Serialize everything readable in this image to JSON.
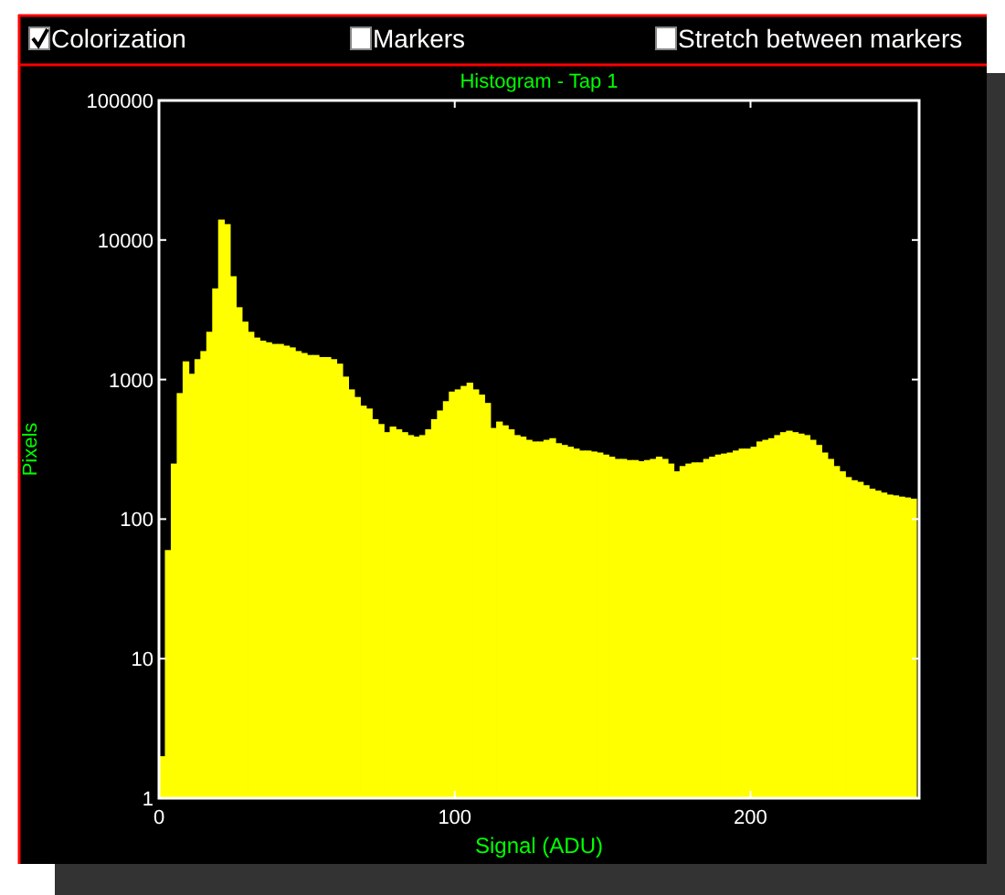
{
  "chart_data": {
    "type": "histogram",
    "title": "Histogram - Tap 1",
    "xlabel": "Signal (ADU)",
    "ylabel": "Pixels",
    "annotations": [
      "Colorization",
      "Markers",
      "Stretch between markers"
    ],
    "bins": [
      0,
      2,
      4,
      6,
      8,
      10,
      12,
      14,
      16,
      18,
      20,
      22,
      24,
      26,
      28,
      30,
      32,
      34,
      36,
      38,
      40,
      42,
      44,
      46,
      48,
      50,
      52,
      54,
      56,
      58,
      60,
      62,
      64,
      66,
      68,
      70,
      72,
      74,
      76,
      78,
      80,
      82,
      84,
      86,
      88,
      90,
      92,
      94,
      96,
      98,
      100,
      102,
      104,
      106,
      108,
      110,
      112,
      114,
      116,
      118,
      120,
      122,
      124,
      126,
      128,
      130,
      132,
      134,
      136,
      138,
      140,
      142,
      144,
      146,
      148,
      150,
      152,
      154,
      156,
      158,
      160,
      162,
      164,
      166,
      168,
      170,
      172,
      174,
      176,
      178,
      180,
      182,
      184,
      186,
      188,
      190,
      192,
      194,
      196,
      198,
      200,
      202,
      204,
      206,
      208,
      210,
      212,
      214,
      216,
      218,
      220,
      222,
      224,
      226,
      228,
      230,
      232,
      234,
      236,
      238,
      240,
      242,
      244,
      246,
      248,
      250,
      252,
      254,
      256
    ],
    "values": [
      2,
      60,
      250,
      800,
      1350,
      1100,
      1400,
      1600,
      2200,
      4500,
      14000,
      13000,
      5500,
      3300,
      2600,
      2200,
      2000,
      1900,
      1850,
      1800,
      1800,
      1750,
      1700,
      1600,
      1550,
      1500,
      1500,
      1450,
      1450,
      1400,
      1300,
      1050,
      850,
      750,
      650,
      620,
      520,
      480,
      420,
      460,
      440,
      420,
      400,
      390,
      400,
      440,
      520,
      600,
      700,
      820,
      850,
      900,
      950,
      850,
      780,
      680,
      450,
      500,
      470,
      440,
      400,
      390,
      370,
      360,
      360,
      370,
      380,
      350,
      340,
      330,
      320,
      310,
      310,
      305,
      300,
      290,
      280,
      270,
      270,
      265,
      265,
      260,
      265,
      270,
      280,
      270,
      250,
      220,
      240,
      250,
      255,
      255,
      270,
      280,
      290,
      295,
      300,
      310,
      320,
      320,
      330,
      360,
      370,
      380,
      400,
      420,
      430,
      420,
      410,
      400,
      370,
      340,
      300,
      270,
      240,
      220,
      200,
      190,
      185,
      175,
      165,
      160,
      155,
      150,
      148,
      145,
      143,
      140
    ],
    "color": "#ffff00",
    "log": "y",
    "xlim": [
      0,
      257
    ],
    "ylim": [
      1,
      100000
    ],
    "xticks": [
      0,
      100,
      200
    ],
    "yticks": [
      1,
      10,
      100,
      1000,
      10000,
      100000
    ],
    "grid": false
  }
}
